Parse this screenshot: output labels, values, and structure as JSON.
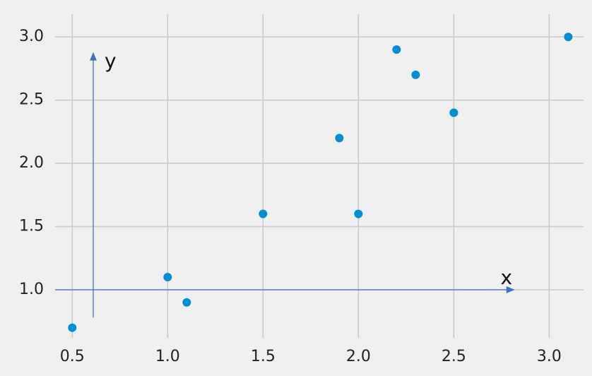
{
  "chart_data": {
    "type": "scatter",
    "x_ticks": [
      "0.5",
      "1.0",
      "1.5",
      "2.0",
      "2.5",
      "3.0"
    ],
    "y_ticks": [
      "1.0",
      "1.5",
      "2.0",
      "2.5",
      "3.0"
    ],
    "x_tick_values": [
      0.5,
      1.0,
      1.5,
      2.0,
      2.5,
      3.0
    ],
    "y_tick_values": [
      1.0,
      1.5,
      2.0,
      2.5,
      3.0
    ],
    "xlim": [
      0.41,
      3.18
    ],
    "ylim": [
      0.62,
      3.18
    ],
    "grid": true,
    "points": [
      {
        "x": 0.5,
        "y": 0.7
      },
      {
        "x": 1.0,
        "y": 1.1
      },
      {
        "x": 1.1,
        "y": 0.9
      },
      {
        "x": 1.5,
        "y": 1.6
      },
      {
        "x": 1.9,
        "y": 2.2
      },
      {
        "x": 2.0,
        "y": 1.6
      },
      {
        "x": 2.2,
        "y": 2.9
      },
      {
        "x": 2.3,
        "y": 2.7
      },
      {
        "x": 2.5,
        "y": 2.4
      },
      {
        "x": 3.1,
        "y": 3.0
      }
    ],
    "annotations": {
      "x_arrow": {
        "label": "x",
        "from": [
          0.41,
          1.0
        ],
        "to": [
          2.82,
          1.0
        ]
      },
      "y_arrow": {
        "label": "y",
        "from": [
          0.61,
          0.78
        ],
        "to": [
          0.61,
          2.88
        ]
      }
    },
    "colors": {
      "background": "#f0f0f0",
      "grid": "#cbcbcb",
      "point": "#008fd5",
      "arrow": "#4472c4",
      "text": "#222222"
    }
  }
}
